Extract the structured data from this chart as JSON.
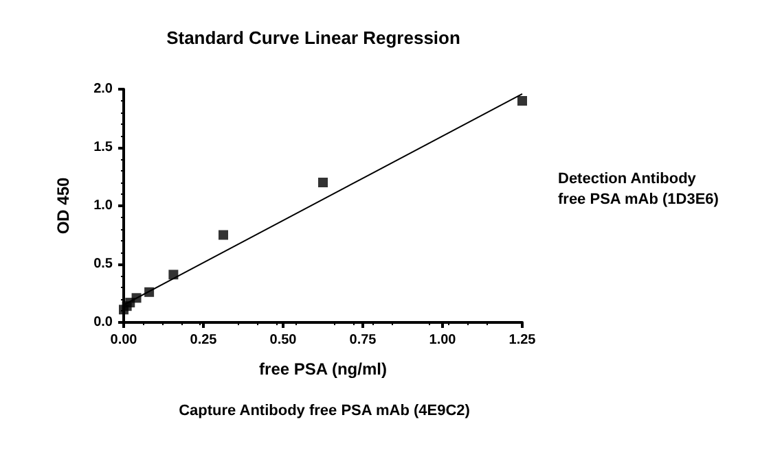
{
  "chart_data": {
    "type": "scatter",
    "title": "Standard Curve Linear Regression",
    "xlabel": "free PSA (ng/ml)",
    "ylabel": "OD 450",
    "annotations": [
      "Detection Antibody\nfree PSA mAb (1D3E6)",
      "Capture Antibody free PSA mAb (4E9C2)"
    ],
    "series": [
      {
        "color": "#000000",
        "marker": "square",
        "x": [
          0,
          0.01,
          0.02,
          0.04,
          0.08,
          0.156,
          0.3125,
          0.625,
          1.25
        ],
        "values": [
          0.11,
          0.14,
          0.17,
          0.21,
          0.26,
          0.41,
          0.75,
          1.2,
          1.9
        ]
      },
      {
        "type": "line",
        "color": "#000000",
        "marker": "none",
        "x": [
          0,
          1.25
        ],
        "values": [
          0.15,
          1.96
        ]
      }
    ],
    "xlim": [
      0,
      1.25
    ],
    "xticks": [
      {
        "value": 0,
        "label": "0.00"
      },
      0.25,
      {
        "value": 0.5,
        "label": "0.50"
      },
      0.75,
      {
        "value": 1,
        "label": "1.00"
      },
      1.25
    ],
    "ylim": [
      0,
      2
    ],
    "yticks": [
      {
        "value": 0,
        "label": "0.0"
      },
      0.5,
      {
        "value": 1,
        "label": "1.0"
      },
      1.5,
      {
        "value": 2,
        "label": "2.0"
      }
    ],
    "grid": false
  }
}
